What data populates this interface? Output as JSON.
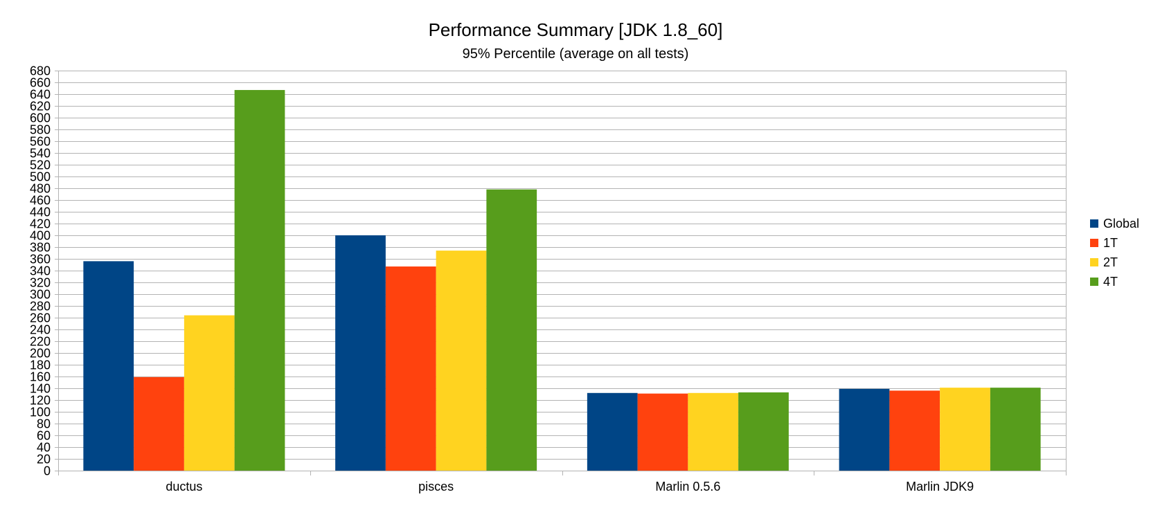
{
  "chart_data": {
    "type": "bar",
    "title": "Performance Summary [JDK 1.8_60]",
    "subtitle": "95% Percentile (average on all tests)",
    "xlabel": "",
    "ylabel": "",
    "categories": [
      "ductus",
      "pisces",
      "Marlin 0.5.6",
      "Marlin JDK9"
    ],
    "series": [
      {
        "name": "Global",
        "color": "#004586",
        "values": [
          356,
          400,
          132,
          139
        ]
      },
      {
        "name": "1T",
        "color": "#ff420e",
        "values": [
          159,
          347,
          131,
          136
        ]
      },
      {
        "name": "2T",
        "color": "#ffd320",
        "values": [
          264,
          374,
          132,
          141
        ]
      },
      {
        "name": "4T",
        "color": "#579d1c",
        "values": [
          647,
          478,
          133,
          141
        ]
      }
    ],
    "ylim": [
      0,
      680
    ],
    "ytick_step": 20,
    "grid": true,
    "legend_position": "right",
    "colors": {
      "grid": "#b3b3b3",
      "axis": "#b3b3b3",
      "background": "#ffffff"
    }
  }
}
